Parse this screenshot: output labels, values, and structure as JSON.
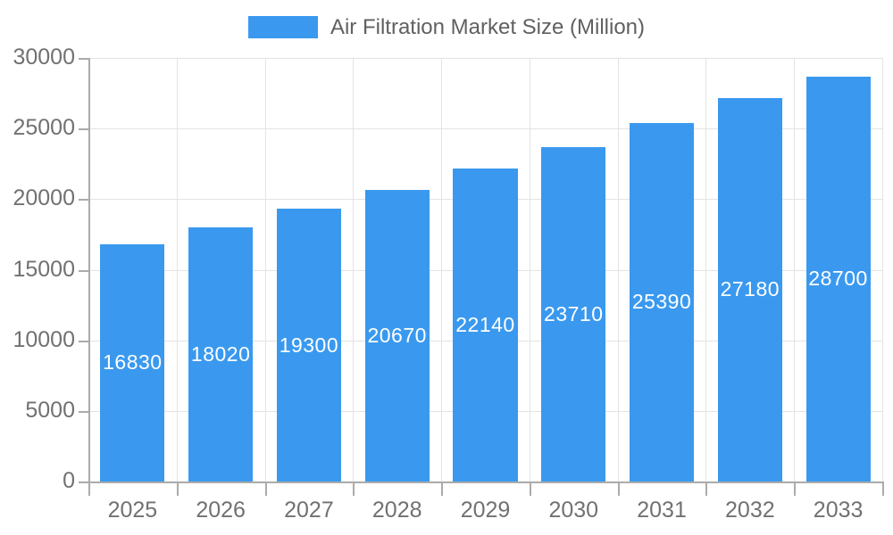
{
  "legend": {
    "label": "Air Filtration Market Size (Million)"
  },
  "colors": {
    "bar": "#3A99EF",
    "grid": "#E3E3E3",
    "axis": "#ABABAB",
    "axis_label_text": "#717171",
    "legend_text": "#606060",
    "value_label_text": "#FFFFFF",
    "background": "#FFFFFF"
  },
  "chart_data": {
    "type": "bar",
    "title": "Air Filtration Market Size (Million)",
    "categories": [
      "2025",
      "2026",
      "2027",
      "2028",
      "2029",
      "2030",
      "2031",
      "2032",
      "2033"
    ],
    "values": [
      16830,
      18020,
      19300,
      20670,
      22140,
      23710,
      25390,
      27180,
      28700
    ],
    "yticks": [
      0,
      5000,
      10000,
      15000,
      20000,
      25000,
      30000
    ],
    "ylim": [
      0,
      30000
    ],
    "grid": true,
    "legend_position": "top-center",
    "value_label_position": "inside-center"
  }
}
